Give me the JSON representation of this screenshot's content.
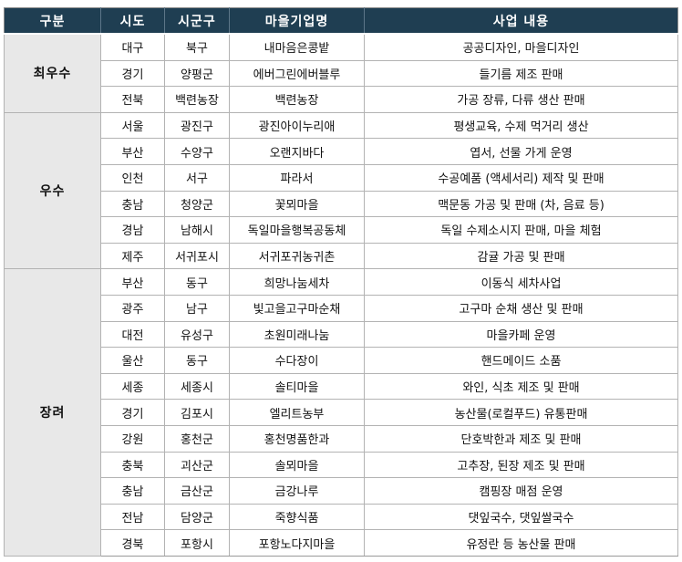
{
  "table": {
    "columns": [
      {
        "key": "category",
        "label": "구분"
      },
      {
        "key": "province",
        "label": "시도"
      },
      {
        "key": "district",
        "label": "시군구"
      },
      {
        "key": "enterprise",
        "label": "마을기업명"
      },
      {
        "key": "business",
        "label": "사업 내용"
      }
    ],
    "groups": [
      {
        "category": "최우수",
        "rows": [
          [
            "대구",
            "북구",
            "내마음은콩밭",
            "공공디자인, 마을디자인"
          ],
          [
            "경기",
            "양평군",
            "에버그린에버블루",
            "들기름 제조 판매"
          ],
          [
            "전북",
            "백련농장",
            "백련농장",
            "가공 장류, 다류 생산 판매"
          ]
        ]
      },
      {
        "category": "우수",
        "rows": [
          [
            "서울",
            "광진구",
            "광진아이누리애",
            "평생교육, 수제 먹거리 생산"
          ],
          [
            "부산",
            "수양구",
            "오랜지바다",
            "엽서, 선물 가게 운영"
          ],
          [
            "인천",
            "서구",
            "파라서",
            "수공예품 (액세서리) 제작 및 판매"
          ],
          [
            "충남",
            "청양군",
            "꽃뫼마을",
            "맥문동 가공 및 판매 (차, 음료 등)"
          ],
          [
            "경남",
            "남해시",
            "독일마을행복공동체",
            "독일 수제소시지 판매, 마을 체험"
          ],
          [
            "제주",
            "서귀포시",
            "서귀포귀농귀촌",
            "감귤 가공 및 판매"
          ]
        ]
      },
      {
        "category": "장려",
        "rows": [
          [
            "부산",
            "동구",
            "희망나눔세차",
            "이동식 세차사업"
          ],
          [
            "광주",
            "남구",
            "빛고을고구마순채",
            "고구마 순채 생산 및 판매"
          ],
          [
            "대전",
            "유성구",
            "초원미래나눔",
            "마을카페 운영"
          ],
          [
            "울산",
            "동구",
            "수다장이",
            "핸드메이드 소품"
          ],
          [
            "세종",
            "세종시",
            "솔티마을",
            "와인, 식초 제조 및 판매"
          ],
          [
            "경기",
            "김포시",
            "엘리트농부",
            "농산물(로컬푸드) 유통판매"
          ],
          [
            "강원",
            "홍천군",
            "홍천명품한과",
            "단호박한과 제조 및 판매"
          ],
          [
            "충북",
            "괴산군",
            "솔뫼마을",
            "고추장, 된장 제조 및 판매"
          ],
          [
            "충남",
            "금산군",
            "금강나루",
            "캠핑장 매점 운영"
          ],
          [
            "전남",
            "담양군",
            "죽향식품",
            "댓잎국수, 댓잎쌀국수"
          ],
          [
            "경북",
            "포항시",
            "포항노다지마을",
            "유정란 등 농산물 판매"
          ]
        ]
      }
    ]
  },
  "colors": {
    "header_bg": "#1f3e52",
    "header_text": "#ffffff",
    "category_bg": "#e8e8e8",
    "border": "#b3b3b3",
    "body_text": "#111111"
  }
}
